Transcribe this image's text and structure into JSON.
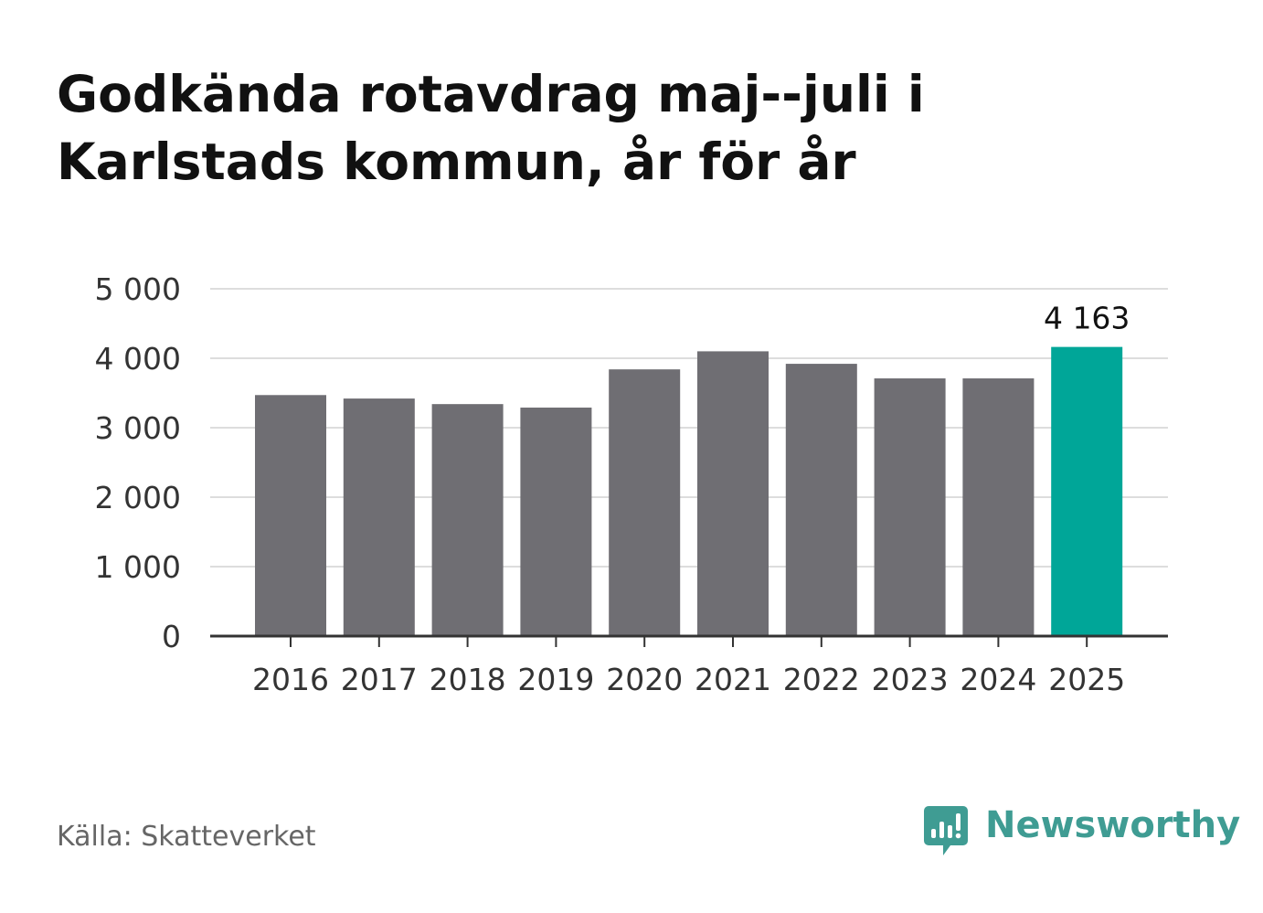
{
  "title": "Godkända rotavdrag maj--juli i Karlstads kommun, år för år",
  "source": "Källa: Skatteverket",
  "logo": {
    "text": "Newsworthy",
    "icon": "newsworthy-logo-icon",
    "color": "#3f9c93"
  },
  "chart_data": {
    "type": "bar",
    "categories": [
      "2016",
      "2017",
      "2018",
      "2019",
      "2020",
      "2021",
      "2022",
      "2023",
      "2024",
      "2025"
    ],
    "values": [
      3470,
      3420,
      3340,
      3290,
      3840,
      4100,
      3920,
      3710,
      3710,
      4163
    ],
    "highlight_index": 9,
    "highlight_label": "4 163",
    "ylim": [
      0,
      5000
    ],
    "yticks": [
      0,
      1000,
      2000,
      3000,
      4000,
      5000
    ],
    "ytick_labels": [
      "0",
      "1 000",
      "2 000",
      "3 000",
      "4 000",
      "5 000"
    ],
    "grid": true,
    "colors": {
      "bar": "#6f6e73",
      "highlight": "#00a698",
      "grid": "#dddddd",
      "axis": "#333333"
    },
    "xlabel": "",
    "ylabel": ""
  }
}
